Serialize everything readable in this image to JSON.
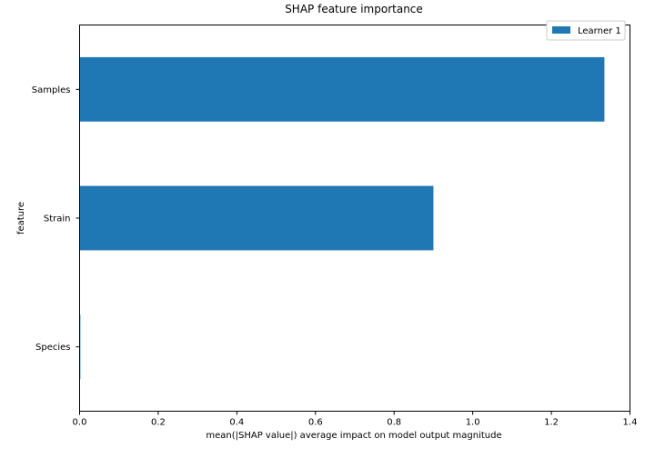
{
  "chart_data": {
    "type": "bar",
    "orientation": "horizontal",
    "title": "SHAP feature importance",
    "xlabel": "mean(|SHAP value|) average impact on model output magnitude",
    "ylabel": "feature",
    "categories": [
      "Samples",
      "Strain",
      "Species"
    ],
    "series": [
      {
        "name": "Learner 1",
        "values": [
          1.335,
          0.9,
          0.002
        ]
      }
    ],
    "xlim": [
      0,
      1.4
    ],
    "xticks": [
      0.0,
      0.2,
      0.4,
      0.6,
      0.8,
      1.0,
      1.2,
      1.4
    ],
    "xtick_labels": [
      "0.0",
      "0.2",
      "0.4",
      "0.6",
      "0.8",
      "1.0",
      "1.2",
      "1.4"
    ],
    "grid": false,
    "legend_position": "top-right",
    "colors": {
      "bar": "#1f77b4",
      "axis": "#000000",
      "legend_border": "#cccccc"
    }
  }
}
